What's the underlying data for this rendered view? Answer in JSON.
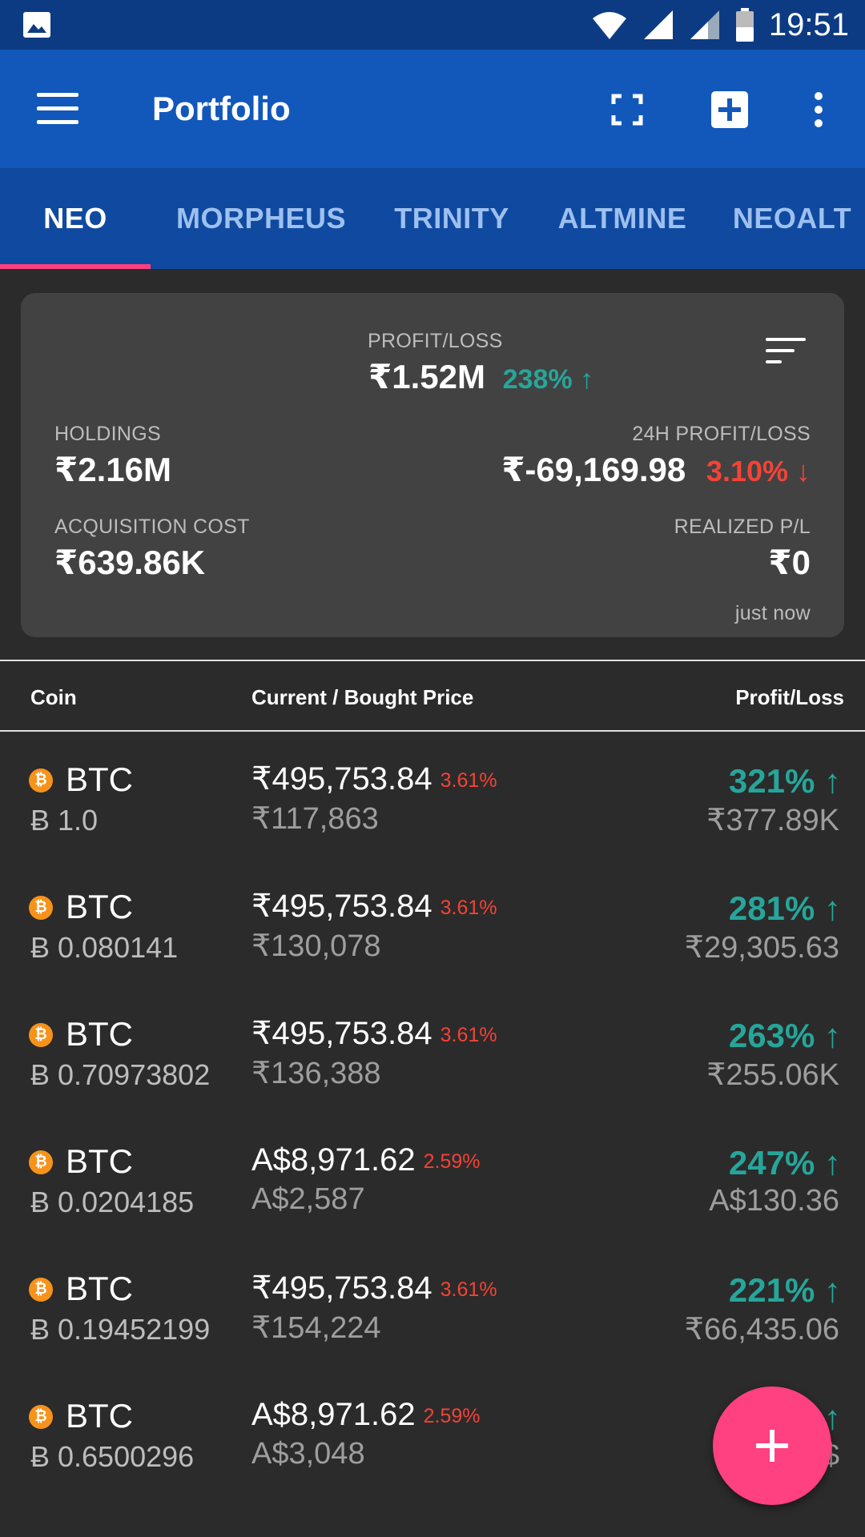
{
  "status_bar": {
    "time": "19:51"
  },
  "app_bar": {
    "title": "Portfolio"
  },
  "tabs": [
    {
      "label": "NEO",
      "active": true
    },
    {
      "label": "MORPHEUS"
    },
    {
      "label": "TRINITY"
    },
    {
      "label": "ALTMINE"
    },
    {
      "label": "NEOALT"
    }
  ],
  "summary": {
    "profit_loss_label": "PROFIT/LOSS",
    "profit_loss_value": "₹1.52M",
    "profit_loss_pct": "238% ↑",
    "holdings_label": "HOLDINGS",
    "holdings_value": "₹2.16M",
    "h24_label": "24H PROFIT/LOSS",
    "h24_value": "₹-69,169.98",
    "h24_pct": "3.10% ↓",
    "acq_label": "ACQUISITION COST",
    "acq_value": "₹639.86K",
    "realized_label": "REALIZED P/L",
    "realized_value": "₹0",
    "updated": "just now"
  },
  "table": {
    "headers": {
      "coin": "Coin",
      "price": "Current / Bought Price",
      "pl": "Profit/Loss"
    },
    "rows": [
      {
        "coin": "BTC",
        "qty": "Ƀ 1.0",
        "current": "₹495,753.84",
        "change": "3.61%",
        "bought": "₹117,863",
        "pl_pct": "321% ↑",
        "pl_val": "₹377.89K"
      },
      {
        "coin": "BTC",
        "qty": "Ƀ 0.080141",
        "current": "₹495,753.84",
        "change": "3.61%",
        "bought": "₹130,078",
        "pl_pct": "281% ↑",
        "pl_val": "₹29,305.63"
      },
      {
        "coin": "BTC",
        "qty": "Ƀ 0.70973802",
        "current": "₹495,753.84",
        "change": "3.61%",
        "bought": "₹136,388",
        "pl_pct": "263% ↑",
        "pl_val": "₹255.06K"
      },
      {
        "coin": "BTC",
        "qty": "Ƀ 0.0204185",
        "current": "A$8,971.62",
        "change": "2.59%",
        "bought": "A$2,587",
        "pl_pct": "247% ↑",
        "pl_val": "A$130.36"
      },
      {
        "coin": "BTC",
        "qty": "Ƀ 0.19452199",
        "current": "₹495,753.84",
        "change": "3.61%",
        "bought": "₹154,224",
        "pl_pct": "221% ↑",
        "pl_val": "₹66,435.06"
      },
      {
        "coin": "BTC",
        "qty": "Ƀ 0.6500296",
        "current": "A$8,971.62",
        "change": "2.59%",
        "bought": "A$3,048",
        "pl_pct": "↑",
        "pl_val": "A$"
      }
    ]
  },
  "coin_icon_glyph": "₿",
  "colors": {
    "status_bar": "#0d3b83",
    "app_bar": "#1258bb",
    "tabs": "#0f4aa0",
    "accent": "#ff4081",
    "profit": "#26a69a",
    "loss": "#f44336"
  },
  "icons": [
    "image-icon",
    "wifi-icon",
    "signal-icon",
    "battery-icon",
    "menu-icon",
    "fullscreen-icon",
    "add-box-icon",
    "more-vert-icon",
    "sort-icon",
    "bitcoin-icon",
    "plus-icon"
  ]
}
